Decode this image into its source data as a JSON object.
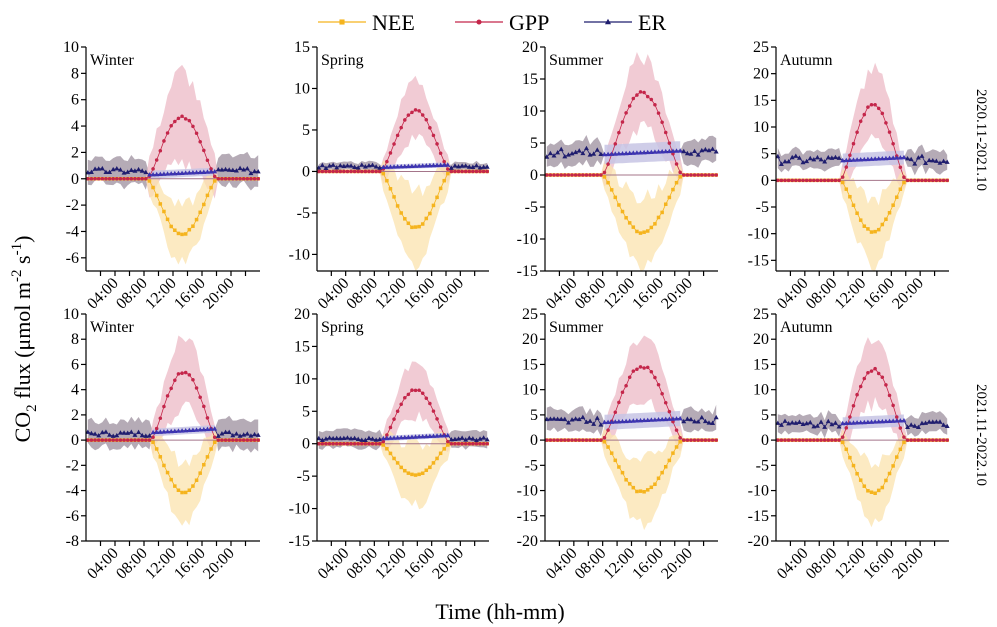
{
  "figure": {
    "ylabel_parts": {
      "base": "CO",
      "sub": "2",
      "mid": " flux (μmol m",
      "sup1": "-2",
      "mid2": " s",
      "sup2": "-1",
      "end": ")"
    },
    "xlabel": "Time (hh-mm)",
    "row_labels": [
      "2020.11-2021.10",
      "2021.11-2022.10"
    ]
  },
  "legend": [
    {
      "name": "NEE",
      "color": "#F5B41E",
      "marker": "square"
    },
    {
      "name": "GPP",
      "color": "#C4264A",
      "marker": "circle"
    },
    {
      "name": "ER",
      "color": "#1F1D6E",
      "marker": "triangle"
    }
  ],
  "colors": {
    "NEE": "#F5B41E",
    "NEE_band": "#FBE3AE",
    "GPP": "#C4264A",
    "GPP_band": "#ECBAC6",
    "ER": "#1F1D6E",
    "ER_band": "#9C8F9E",
    "ER_day": "#3C33B2",
    "ER_day_band": "#C7C4E4",
    "GPP_zero": "#A4758A"
  },
  "chart_data": [
    {
      "type": "line",
      "season": "Winter",
      "row": 0,
      "col": 0,
      "ylim": [
        -7,
        10
      ],
      "yticks": [
        -6,
        -4,
        -2,
        0,
        2,
        4,
        6,
        8,
        10
      ],
      "day": [
        8.5,
        18
      ],
      "gpp_peak": 4.7,
      "nee_min": -4.2,
      "er_night": 0.6,
      "er_day": [
        0.3,
        0.55
      ],
      "band": {
        "nee": 2.2,
        "gpp": 3.5,
        "er": 1.8,
        "er_day": 0.3
      },
      "x_ticks": [
        "04:00",
        "08:00",
        "12:00",
        "16:00",
        "20:00"
      ]
    },
    {
      "type": "line",
      "season": "Spring",
      "row": 0,
      "col": 1,
      "ylim": [
        -12,
        15
      ],
      "yticks": [
        -10,
        -5,
        0,
        5,
        10,
        15
      ],
      "day": [
        9,
        18.5
      ],
      "gpp_peak": 7.3,
      "nee_min": -6.8,
      "er_night": 0.6,
      "er_day": [
        0.5,
        0.8
      ],
      "band": {
        "nee": 4.5,
        "gpp": 3.5,
        "er": 0.8,
        "er_day": 0.3
      },
      "x_ticks": [
        "04:00",
        "08:00",
        "12:00",
        "16:00",
        "20:00"
      ]
    },
    {
      "type": "line",
      "season": "Summer",
      "row": 0,
      "col": 2,
      "ylim": [
        -15,
        20
      ],
      "yticks": [
        -15,
        -10,
        -5,
        0,
        5,
        10,
        15,
        20
      ],
      "day": [
        8,
        19
      ],
      "gpp_peak": 12.8,
      "nee_min": -9,
      "er_night": 3.5,
      "er_day": [
        3.2,
        3.8
      ],
      "band": {
        "nee": 5.5,
        "gpp": 5.5,
        "er": 3.0,
        "er_day": 1.5
      },
      "x_ticks": [
        "04:00",
        "08:00",
        "12:00",
        "16:00",
        "20:00"
      ]
    },
    {
      "type": "line",
      "season": "Autumn",
      "row": 0,
      "col": 3,
      "ylim": [
        -17,
        25
      ],
      "yticks": [
        -15,
        -10,
        -5,
        0,
        5,
        10,
        15,
        20,
        25
      ],
      "day": [
        9,
        18
      ],
      "gpp_peak": 14.2,
      "nee_min": -9.6,
      "er_night": 3.8,
      "er_day": [
        3.7,
        4.3
      ],
      "band": {
        "nee": 6.0,
        "gpp": 6.5,
        "er": 3.0,
        "er_day": 1.3
      },
      "x_ticks": [
        "04:00",
        "08:00",
        "12:00",
        "16:00",
        "20:00"
      ]
    },
    {
      "type": "line",
      "season": "Winter",
      "row": 1,
      "col": 0,
      "ylim": [
        -8,
        10
      ],
      "yticks": [
        -8,
        -6,
        -4,
        -2,
        0,
        2,
        4,
        6,
        8,
        10
      ],
      "day": [
        9,
        18
      ],
      "gpp_peak": 5.4,
      "nee_min": -4.1,
      "er_night": 0.5,
      "er_day": [
        0.6,
        0.9
      ],
      "band": {
        "nee": 2.5,
        "gpp": 2.8,
        "er": 1.8,
        "er_day": 0.3
      },
      "x_ticks": [
        "04:00",
        "08:00",
        "12:00",
        "16:00",
        "20:00"
      ]
    },
    {
      "type": "line",
      "season": "Spring",
      "row": 1,
      "col": 1,
      "ylim": [
        -15,
        20
      ],
      "yticks": [
        -15,
        -10,
        -5,
        0,
        5,
        10,
        15,
        20
      ],
      "day": [
        9,
        18.5
      ],
      "gpp_peak": 8.3,
      "nee_min": -4.9,
      "er_night": 0.7,
      "er_day": [
        0.8,
        1.3
      ],
      "band": {
        "nee": 4.8,
        "gpp": 4.0,
        "er": 2.2,
        "er_day": 0.4
      },
      "x_ticks": [
        "04:00",
        "08:00",
        "12:00",
        "16:00",
        "20:00"
      ]
    },
    {
      "type": "line",
      "season": "Summer",
      "row": 1,
      "col": 2,
      "ylim": [
        -20,
        25
      ],
      "yticks": [
        -20,
        -15,
        -10,
        -5,
        0,
        5,
        10,
        15,
        20,
        25
      ],
      "day": [
        8,
        19
      ],
      "gpp_peak": 14.6,
      "nee_min": -10.3,
      "er_night": 3.8,
      "er_day": [
        3.5,
        4.3
      ],
      "band": {
        "nee": 6.5,
        "gpp": 6.0,
        "er": 3.5,
        "er_day": 1.5
      },
      "x_ticks": [
        "04:00",
        "08:00",
        "12:00",
        "16:00",
        "20:00"
      ]
    },
    {
      "type": "line",
      "season": "Autumn",
      "row": 1,
      "col": 3,
      "ylim": [
        -20,
        25
      ],
      "yticks": [
        -20,
        -15,
        -10,
        -5,
        0,
        5,
        10,
        15,
        20,
        25
      ],
      "day": [
        9,
        18
      ],
      "gpp_peak": 14.0,
      "nee_min": -10.5,
      "er_night": 3.2,
      "er_day": [
        3.3,
        3.9
      ],
      "band": {
        "nee": 6.0,
        "gpp": 6.5,
        "er": 3.0,
        "er_day": 1.2
      },
      "x_ticks": [
        "04:00",
        "08:00",
        "12:00",
        "16:00",
        "20:00"
      ]
    }
  ]
}
